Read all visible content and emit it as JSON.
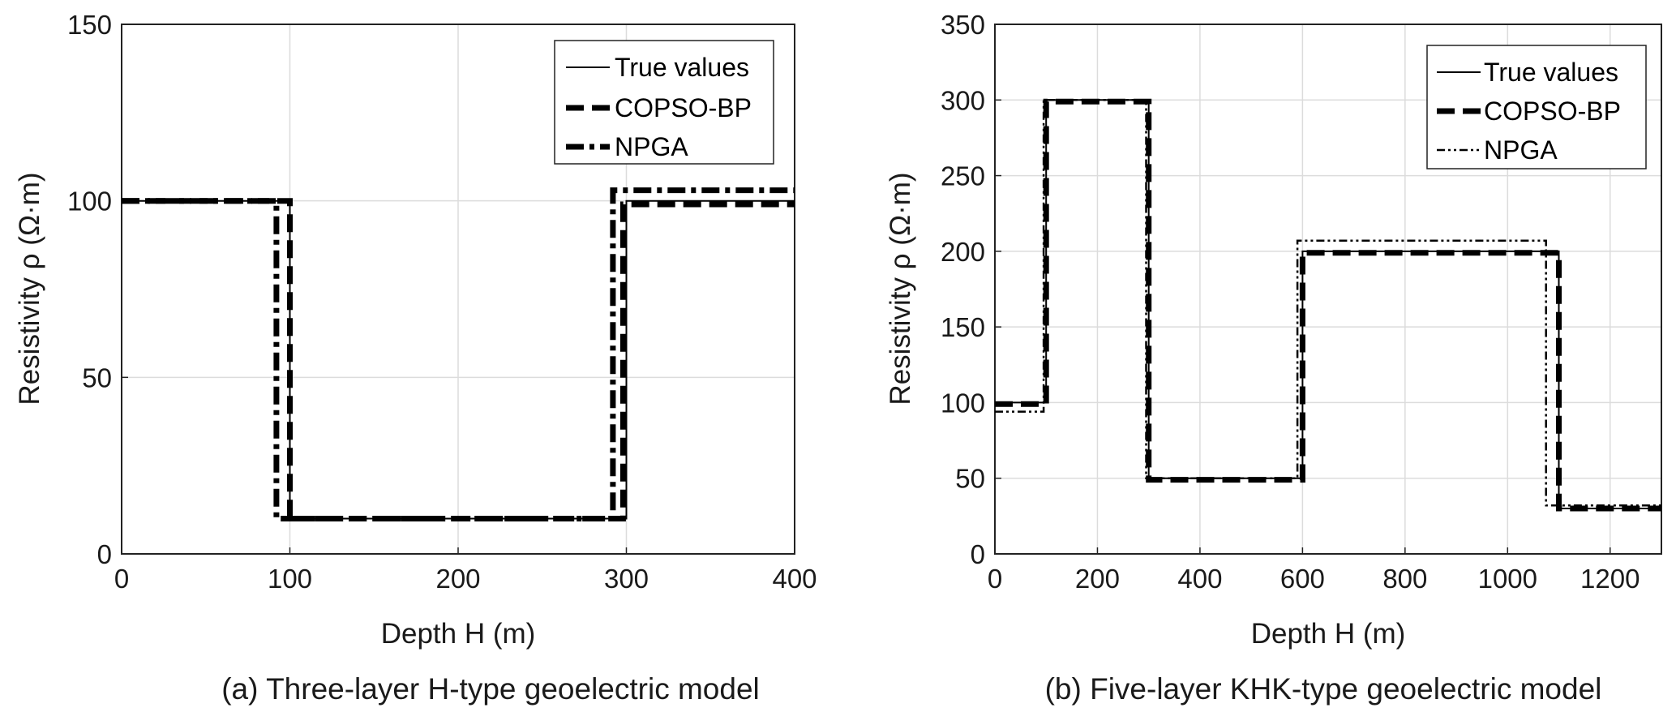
{
  "chart_data": [
    {
      "type": "line",
      "caption": "(a) Three-layer H-type geoelectric model",
      "xlabel": "Depth H (m)",
      "ylabel": "Resistivity ρ (Ω·m)",
      "xlim": [
        0,
        400
      ],
      "ylim": [
        0,
        150
      ],
      "xticks": [
        0,
        100,
        200,
        300,
        400
      ],
      "yticks": [
        0,
        50,
        100,
        150
      ],
      "grid": true,
      "legend_position": "top-right",
      "series": [
        {
          "name": "True values",
          "style": "solid-thin",
          "color": "#000000",
          "x": [
            0,
            100,
            100,
            300,
            300,
            400
          ],
          "y": [
            100,
            100,
            10,
            10,
            100,
            100
          ]
        },
        {
          "name": "COPSO-BP",
          "style": "dashed-thick",
          "color": "#000000",
          "x": [
            0,
            100,
            100,
            298,
            298,
            400
          ],
          "y": [
            100,
            100,
            10,
            10,
            99,
            99
          ]
        },
        {
          "name": "NPGA",
          "style": "dashdot-thick",
          "color": "#000000",
          "x": [
            0,
            92,
            92,
            292,
            292,
            400
          ],
          "y": [
            100,
            100,
            10,
            10,
            103,
            103
          ]
        }
      ]
    },
    {
      "type": "line",
      "caption": "(b) Five-layer KHK-type geoelectric model",
      "xlabel": "Depth H (m)",
      "ylabel": "Resistivity ρ (Ω·m)",
      "xlim": [
        0,
        1300
      ],
      "ylim": [
        0,
        350
      ],
      "xticks": [
        0,
        200,
        400,
        600,
        800,
        1000,
        1200
      ],
      "yticks": [
        0,
        50,
        100,
        150,
        200,
        250,
        300,
        350
      ],
      "grid": true,
      "legend_position": "top-right",
      "series": [
        {
          "name": "True values",
          "style": "solid-thin",
          "color": "#000000",
          "x": [
            0,
            100,
            100,
            300,
            300,
            600,
            600,
            1100,
            1100,
            1300
          ],
          "y": [
            100,
            100,
            300,
            300,
            50,
            50,
            200,
            200,
            30,
            30
          ]
        },
        {
          "name": "COPSO-BP",
          "style": "dashed-thick",
          "color": "#000000",
          "x": [
            0,
            100,
            100,
            300,
            300,
            600,
            600,
            1100,
            1100,
            1300
          ],
          "y": [
            99,
            99,
            299,
            299,
            49,
            49,
            199,
            199,
            30,
            30
          ]
        },
        {
          "name": "NPGA",
          "style": "dashdot-thin",
          "color": "#000000",
          "x": [
            0,
            95,
            95,
            295,
            295,
            590,
            590,
            1075,
            1075,
            1300
          ],
          "y": [
            94,
            94,
            300,
            300,
            50,
            50,
            207,
            207,
            32,
            32
          ]
        }
      ]
    }
  ]
}
